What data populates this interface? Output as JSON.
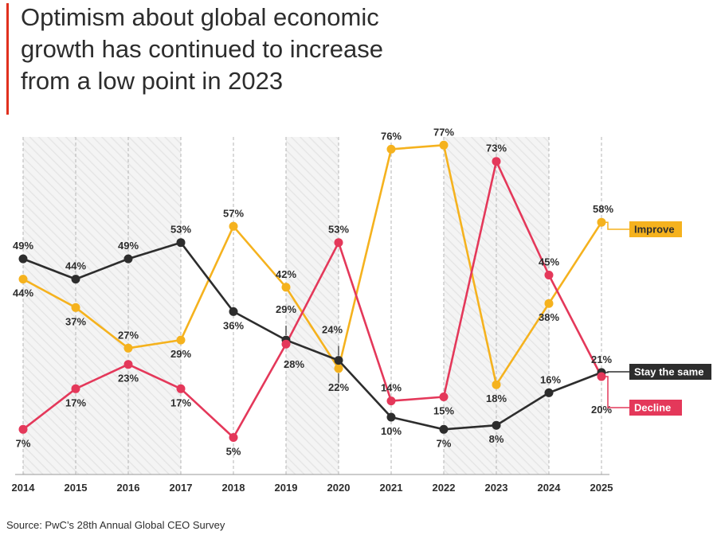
{
  "title": "Optimism about global economic growth has continued to increase from a low point in 2023",
  "source": "Source: PwC’s 28th Annual Global CEO Survey",
  "colors": {
    "improve": "#f5b21e",
    "stay": "#2d2d2d",
    "decline": "#e4385a",
    "accent": "#e0301e",
    "hatch_bg": "#f3f3f3"
  },
  "chart_data": {
    "type": "line",
    "title": "Optimism about global economic growth has continued to increase from a low point in 2023",
    "xlabel": "",
    "ylabel": "",
    "ylim": [
      0,
      80
    ],
    "categories": [
      "2014",
      "2015",
      "2016",
      "2017",
      "2018",
      "2019",
      "2020",
      "2021",
      "2022",
      "2023",
      "2024",
      "2025"
    ],
    "series": [
      {
        "name": "Improve",
        "key": "improve",
        "values": [
          44,
          37,
          27,
          29,
          57,
          42,
          22,
          76,
          77,
          18,
          38,
          58
        ]
      },
      {
        "name": "Stay the same",
        "key": "stay",
        "values": [
          49,
          44,
          49,
          53,
          36,
          29,
          24,
          10,
          7,
          8,
          16,
          21
        ]
      },
      {
        "name": "Decline",
        "key": "decline",
        "values": [
          7,
          17,
          23,
          17,
          5,
          28,
          53,
          14,
          15,
          73,
          45,
          20
        ]
      }
    ],
    "legend": [
      "Improve",
      "Stay the same",
      "Decline"
    ],
    "shaded_ranges": [
      [
        "2014",
        "2017"
      ],
      [
        "2019",
        "2020"
      ],
      [
        "2022",
        "2024"
      ]
    ]
  }
}
